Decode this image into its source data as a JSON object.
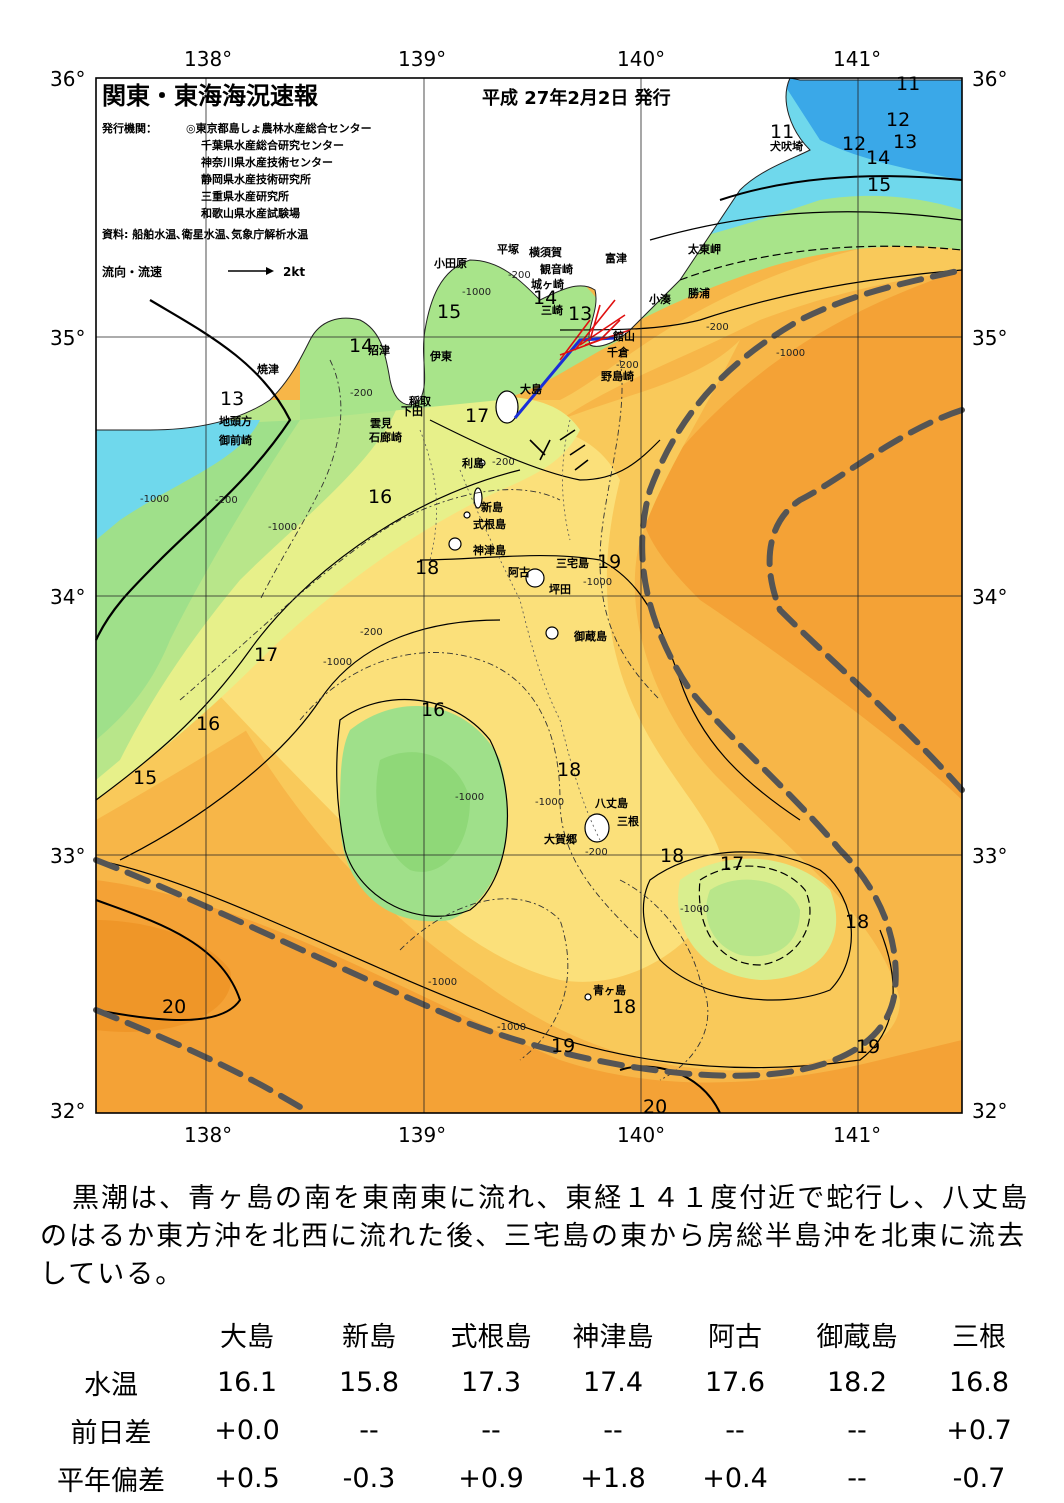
{
  "header": {
    "title": "関東・東海海況速報",
    "issue_date": "平成 27年2月2日 発行",
    "issuers_label": "発行機関：",
    "issuers": [
      "◎東京都島しょ農林水産総合センター",
      "千葉県水産総合研究センター",
      "神奈川県水産技術センター",
      "静岡県水産技術研究所",
      "三重県水産研究所",
      "和歌山県水産試験場"
    ],
    "sources": "資料: 船舶水温､衛星水温､気象庁解析水温",
    "legend_label": "流向・流速",
    "legend_unit": "2kt"
  },
  "axes": {
    "longitudes": [
      "138°",
      "139°",
      "140°",
      "141°"
    ],
    "latitudes": [
      "36°",
      "35°",
      "34°",
      "33°",
      "32°"
    ]
  },
  "isotherm_labels": [
    "11",
    "11",
    "12",
    "12",
    "13",
    "14",
    "15",
    "14",
    "13",
    "15",
    "14",
    "13",
    "17",
    "16",
    "18",
    "19",
    "17",
    "16",
    "16",
    "15",
    "18",
    "18",
    "17",
    "18",
    "20",
    "18",
    "19",
    "19",
    "20"
  ],
  "depth_labels": [
    "-200",
    "-1000",
    "-200",
    "-1000",
    "-200",
    "-1000",
    "-200",
    "-200",
    "-1000",
    "-1000",
    "-1000",
    "-1000",
    "-200",
    "-1000",
    "-1000",
    "-1000",
    "-200",
    "-1000",
    "-200"
  ],
  "places": {
    "inubosaki": "犬吠埼",
    "taitomisaki": "太東岬",
    "katsuura": "勝浦",
    "kominato": "小湊",
    "futtsu": "富津",
    "tateyama": "館山",
    "chikura": "千倉",
    "nojimazaki": "野島崎",
    "yokosuka": "横須賀",
    "kannonzaki": "観音崎",
    "jogasaki": "城ヶ崎",
    "miura": "三崎",
    "hiratsuka": "平塚",
    "odawara": "小田原",
    "numazu": "沼津",
    "ito": "伊東",
    "inatori": "稲取",
    "shimoda": "下田",
    "mikomoto": "雲見",
    "irozaki": "石廊崎",
    "yaizu": "焼津",
    "chikyu": "地頭方",
    "omaezaki": "御前崎",
    "oshima": "大島",
    "toshima": "利島",
    "niijima": "新島",
    "shikinejima": "式根島",
    "kozushima": "神津島",
    "ako": "阿古",
    "miyakejima": "三宅島",
    "tsubota": "坪田",
    "mikurajima": "御蔵島",
    "hachijojima": "八丈島",
    "mitsune": "三根",
    "okago": "大賀郷",
    "aogashima": "青ヶ島"
  },
  "summary": "黒潮は、青ヶ島の南を東南東に流れ、東経１４１度付近で蛇行し、八丈島のはるか東方沖を北西に流れた後、三宅島の東から房総半島沖を北東に流去している。",
  "table": {
    "columns": [
      "大島",
      "新島",
      "式根島",
      "神津島",
      "阿古",
      "御蔵島",
      "三根"
    ],
    "rows": [
      {
        "label": "水温",
        "values": [
          "16.1",
          "15.8",
          "17.3",
          "17.4",
          "17.6",
          "18.2",
          "16.8"
        ]
      },
      {
        "label": "前日差",
        "values": [
          "+0.0",
          "--",
          "--",
          "--",
          "--",
          "--",
          "+0.7"
        ]
      },
      {
        "label": "平年偏差",
        "values": [
          "+0.5",
          "-0.3",
          "+0.9",
          "+1.8",
          "+0.4",
          "--",
          "-0.7"
        ]
      }
    ]
  },
  "colors": {
    "deep_orange": "#f4a236",
    "orange": "#f7b648",
    "light_orange": "#f9c95a",
    "yellow": "#fbe07a",
    "pale_yellow": "#f7f39a",
    "yellow_green": "#d9ee8e",
    "light_green": "#b8e68a",
    "green": "#9fe08a",
    "cyan": "#6fd8ec",
    "blue": "#3aa8e8",
    "land": "#ffffff",
    "kuroshio_path": "#555555"
  }
}
